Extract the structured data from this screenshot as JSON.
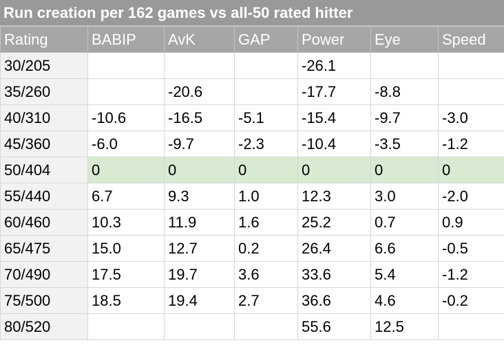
{
  "title": "Run creation per 162 games vs all-50 rated hitter",
  "columns": [
    "Rating",
    "BABIP",
    "AvK",
    "GAP",
    "Power",
    "Eye",
    "Speed"
  ],
  "rows": [
    [
      "30/205",
      "",
      "",
      "",
      "-26.1",
      "",
      ""
    ],
    [
      "35/260",
      "",
      "-20.6",
      "",
      "-17.7",
      "-8.8",
      ""
    ],
    [
      "40/310",
      "-10.6",
      "-16.5",
      "-5.1",
      "-15.4",
      "-9.7",
      "-3.0"
    ],
    [
      "45/360",
      "-6.0",
      "-9.7",
      "-2.3",
      "-10.4",
      "-3.5",
      "-1.2"
    ],
    [
      "50/404",
      "0",
      "0",
      "0",
      "0",
      "0",
      "0"
    ],
    [
      "55/440",
      "6.7",
      "9.3",
      "1.0",
      "12.3",
      "3.0",
      "-2.0"
    ],
    [
      "60/460",
      "10.3",
      "11.9",
      "1.6",
      "25.2",
      "0.7",
      "0.9"
    ],
    [
      "65/475",
      "15.0",
      "12.7",
      "0.2",
      "26.4",
      "6.6",
      "-0.5"
    ],
    [
      "70/490",
      "17.5",
      "19.7",
      "3.6",
      "33.6",
      "5.4",
      "-1.2"
    ],
    [
      "75/500",
      "18.5",
      "19.4",
      "2.7",
      "36.6",
      "4.6",
      "-0.2"
    ],
    [
      "80/520",
      "",
      "",
      "",
      "55.6",
      "12.5",
      ""
    ]
  ],
  "highlight_row": 4,
  "colors": {
    "header_bg": "#a6a6a6",
    "title_bg": "#999999",
    "highlight": "#d9ead3",
    "empty_cell": "#f2f2f2"
  }
}
